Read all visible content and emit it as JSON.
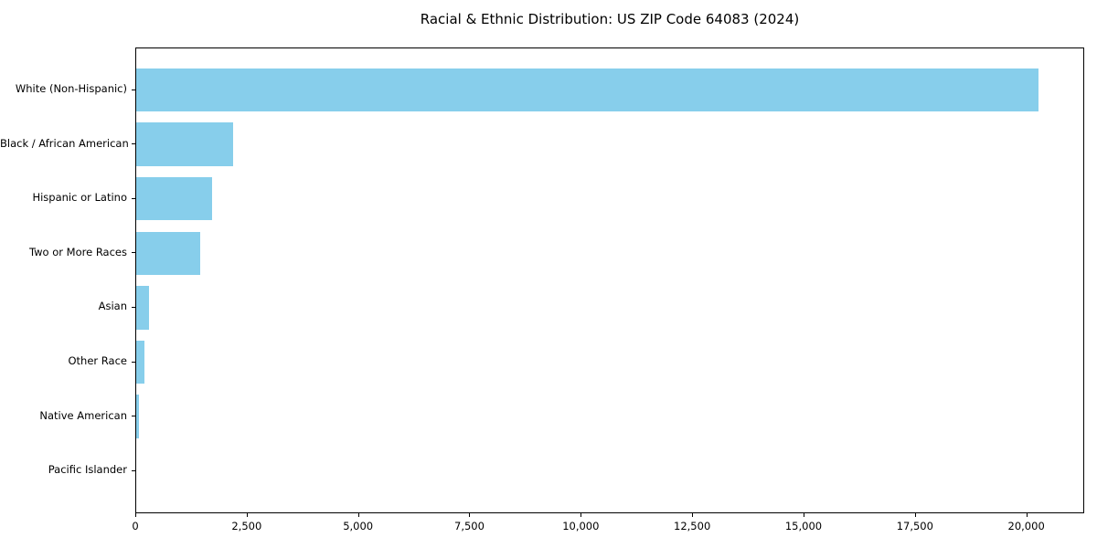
{
  "title": "Racial & Ethnic Distribution: US ZIP Code 64083 (2024)",
  "chart_data": {
    "type": "bar",
    "orientation": "horizontal",
    "title": "Racial & Ethnic Distribution: US ZIP Code 64083 (2024)",
    "xlabel": "",
    "ylabel": "",
    "categories": [
      "White (Non-Hispanic)",
      "Black / African American",
      "Hispanic or Latino",
      "Two or More Races",
      "Asian",
      "Other Race",
      "Native American",
      "Pacific Islander"
    ],
    "values": [
      20300,
      2180,
      1705,
      1440,
      290,
      185,
      60,
      0
    ],
    "xlim": [
      0,
      21300
    ],
    "x_ticks": [
      {
        "value": 0,
        "label": "0"
      },
      {
        "value": 2500,
        "label": "2,500"
      },
      {
        "value": 5000,
        "label": "5,000"
      },
      {
        "value": 7500,
        "label": "7,500"
      },
      {
        "value": 10000,
        "label": "10,000"
      },
      {
        "value": 12500,
        "label": "12,500"
      },
      {
        "value": 15000,
        "label": "15,000"
      },
      {
        "value": 17500,
        "label": "17,500"
      },
      {
        "value": 20000,
        "label": "20,000"
      }
    ],
    "bar_color": "#87CEEB",
    "axis_color": "#000000",
    "text_color": "#000000",
    "grid": false,
    "legend": false
  }
}
